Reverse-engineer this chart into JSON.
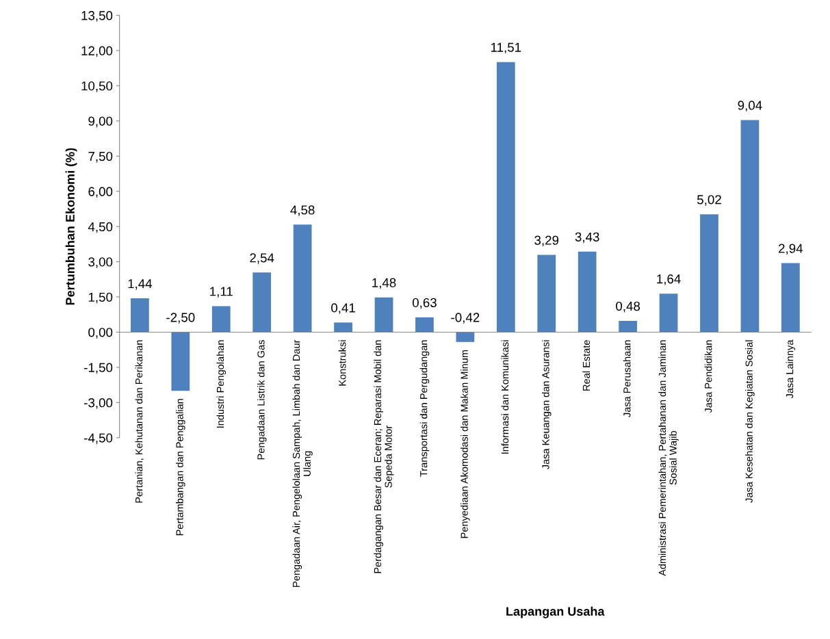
{
  "chart_data": {
    "type": "bar",
    "xlabel": "Lapangan Usaha",
    "ylabel": "Pertumbuhan Ekonomi (%)",
    "categories": [
      "Pertanian, Kehutanan dan Perikanan",
      "Pertambangan dan Penggalian",
      "Industri Pengolahan",
      "Pengadaan Listrik dan Gas",
      "Pengadaan Air, Pengelolaan Sampah, Limbah dan Daur\nUlang",
      "Konstruksi",
      "Perdagangan Besar dan Eceran; Reparasi Mobil dan\nSepeda Motor",
      "Transportasi dan Pergudangan",
      "Penyediaan Akomodasi dan Makan Minum",
      "Informasi dan Komunikasi",
      "Jasa Keuangan dan Asuransi",
      "Real Estate",
      "Jasa Perusahaan",
      "Administrasi Pemerintahan, Pertahanan dan Jaminan\nSosial Wajib",
      "Jasa Pendidikan",
      "Jasa Kesehatan dan Kegiatan Sosial",
      "Jasa Lainnya"
    ],
    "values": [
      1.44,
      -2.5,
      1.11,
      2.54,
      4.58,
      0.41,
      1.48,
      0.63,
      -0.42,
      11.51,
      3.29,
      3.43,
      0.48,
      1.64,
      5.02,
      9.04,
      2.94
    ],
    "value_labels": [
      "1,44",
      "-2,50",
      "1,11",
      "2,54",
      "4,58",
      "0,41",
      "1,48",
      "0,63",
      "-0,42",
      "11,51",
      "3,29",
      "3,43",
      "0,48",
      "1,64",
      "5,02",
      "9,04",
      "2,94"
    ],
    "color": "#4f81bd",
    "ylim": [
      -4.5,
      13.5
    ],
    "yticks": [
      {
        "value": -4.5,
        "label": "-4,50"
      },
      {
        "value": -3,
        "label": "-3,00"
      },
      {
        "value": -1.5,
        "label": "-1,50"
      },
      {
        "value": 0,
        "label": "0,00"
      },
      {
        "value": 1.5,
        "label": "1,50"
      },
      {
        "value": 3,
        "label": "3,00"
      },
      {
        "value": 4.5,
        "label": "4,50"
      },
      {
        "value": 6,
        "label": "6,00"
      },
      {
        "value": 7.5,
        "label": "7,50"
      },
      {
        "value": 9,
        "label": "9,00"
      },
      {
        "value": 10.5,
        "label": "10,50"
      },
      {
        "value": 12,
        "label": "12,00"
      },
      {
        "value": 13.5,
        "label": "13,50"
      }
    ],
    "grid": false,
    "legend": false
  }
}
